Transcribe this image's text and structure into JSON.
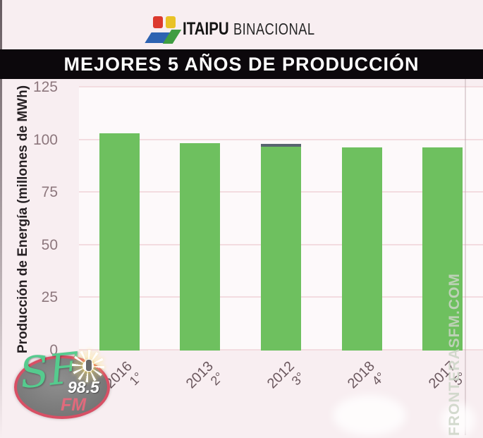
{
  "header": {
    "brand_bold": "ITAIPU",
    "brand_light": "BINACIONAL",
    "banner_title": "MEJORES 5 AÑOS DE PRODUCCIÓN"
  },
  "chart_data": {
    "type": "bar",
    "title": "MEJORES 5 AÑOS DE PRODUCCIÓN",
    "ylabel": "Producción de Energía (millones de MWh)",
    "xlabel": "",
    "categories": [
      "2016",
      "2013",
      "2012",
      "2018",
      "2017"
    ],
    "ranks": [
      "1°",
      "2°",
      "3°",
      "4°",
      "5°"
    ],
    "values": [
      103.1,
      98.6,
      98.3,
      96.6,
      96.4
    ],
    "ylim": [
      0,
      125
    ],
    "yticks": [
      0,
      25,
      50,
      75,
      100,
      125
    ],
    "grid": true,
    "legend_position": "none",
    "bar_color": "#6ec05f",
    "highlighted_bar": {
      "index": 2,
      "cap_color": "#57656f"
    }
  },
  "watermark": {
    "text": "FRONTERASFM.COM"
  },
  "station_logo": {
    "script_text": "SF",
    "fm_text": "FM",
    "frequency": "98.5"
  },
  "colors": {
    "page_background": "#f8eef1",
    "banner_background": "#0c080c",
    "banner_text": "#ffffff",
    "bar_green": "#6ec05f",
    "gridline_pink": "#f3dce0",
    "axis_text": "#8d777d",
    "logo_red": "#dc392e",
    "logo_yellow": "#e9c226",
    "logo_blue": "#2e63b1",
    "logo_green": "#3f9d41",
    "station_ring": "#d85065",
    "station_script_green": "#55cb8e",
    "station_fm_pink": "#e06a7c"
  }
}
